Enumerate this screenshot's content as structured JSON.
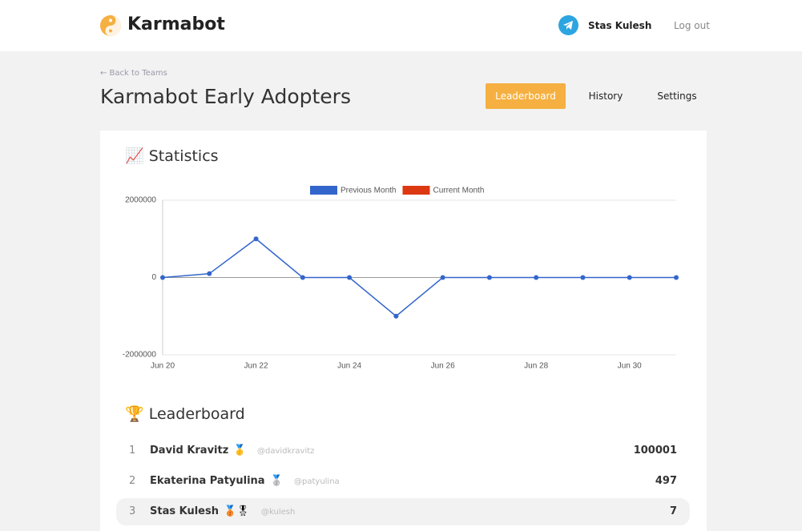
{
  "header": {
    "brand": "Karmabot",
    "user": "Stas Kulesh",
    "logout": "Log out"
  },
  "page": {
    "back": "← Back to Teams",
    "title": "Karmabot Early Adopters",
    "tabs": [
      "Leaderboard",
      "History",
      "Settings"
    ]
  },
  "statistics_title": "📈 Statistics",
  "chart_data": {
    "type": "line",
    "categories": [
      "Jun 20",
      null,
      "Jun 22",
      null,
      "Jun 24",
      null,
      "Jun 26",
      null,
      "Jun 28",
      null,
      "Jun 30",
      null
    ],
    "series": [
      {
        "name": "Previous Month",
        "color": "#3366cc",
        "values": [
          0,
          100000,
          1000000,
          0,
          0,
          -1000000,
          0,
          0,
          0,
          0,
          0,
          0
        ]
      },
      {
        "name": "Current Month",
        "color": "#dc3912",
        "values": [
          null,
          null,
          null,
          null,
          null,
          null,
          null,
          null,
          null,
          null,
          null,
          null
        ]
      }
    ],
    "ylim": [
      -2000000,
      2000000
    ],
    "yticks": [
      -2000000,
      0,
      2000000
    ],
    "grid": true,
    "legend": "top"
  },
  "leaderboard_title": "🏆 Leaderboard",
  "leaderboard": [
    {
      "rank": "1",
      "name": "David Kravitz",
      "badge": "🥇",
      "handle": "@davidkravitz",
      "karma": "100001"
    },
    {
      "rank": "2",
      "name": "Ekaterina Patyulina",
      "badge": "🥈",
      "handle": "@patyulina",
      "karma": "497"
    },
    {
      "rank": "3",
      "name": "Stas Kulesh",
      "badge": "🥉🎖",
      "handle": "@kulesh",
      "karma": "7"
    }
  ]
}
